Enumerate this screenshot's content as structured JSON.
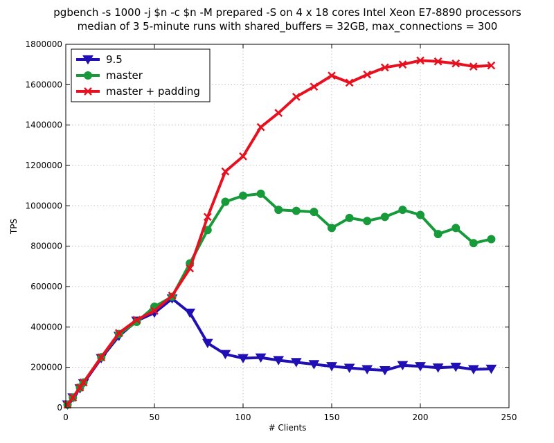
{
  "chart_data": {
    "type": "line",
    "title": "pgbench -s 1000 -j $n -c $n -M prepared -S on 4 x 18 cores Intel Xeon E7-8890 processors",
    "subtitle": "median of 3 5-minute runs with shared_buffers = 32GB, max_connections = 300",
    "xlabel": "# Clients",
    "ylabel": "TPS",
    "xlim": [
      0,
      250
    ],
    "ylim": [
      0,
      1800000
    ],
    "xticks": [
      0,
      50,
      100,
      150,
      200,
      250
    ],
    "yticks": [
      0,
      200000,
      400000,
      600000,
      800000,
      1000000,
      1200000,
      1400000,
      1600000,
      1800000
    ],
    "grid": true,
    "legend_position": "top-left",
    "x": [
      1,
      4,
      8,
      10,
      20,
      30,
      40,
      50,
      60,
      70,
      80,
      90,
      100,
      110,
      120,
      130,
      140,
      150,
      160,
      170,
      180,
      190,
      200,
      210,
      220,
      230,
      240
    ],
    "series": [
      {
        "name": "9.5",
        "color": "#1f0fb4",
        "marker": "triangle-down",
        "values": [
          15000,
          50000,
          95000,
          120000,
          245000,
          355000,
          430000,
          470000,
          540000,
          470000,
          320000,
          265000,
          245000,
          248000,
          235000,
          225000,
          215000,
          205000,
          197000,
          190000,
          185000,
          210000,
          205000,
          198000,
          202000,
          190000,
          192000
        ]
      },
      {
        "name": "master",
        "color": "#169a3a",
        "marker": "circle",
        "values": [
          15000,
          50000,
          100000,
          125000,
          250000,
          365000,
          425000,
          500000,
          550000,
          715000,
          880000,
          1020000,
          1050000,
          1060000,
          980000,
          975000,
          970000,
          890000,
          940000,
          925000,
          945000,
          980000,
          955000,
          860000,
          890000,
          815000,
          835000
        ]
      },
      {
        "name": "master + padding",
        "color": "#e8101f",
        "marker": "x",
        "values": [
          15000,
          50000,
          100000,
          125000,
          250000,
          370000,
          435000,
          480000,
          555000,
          690000,
          945000,
          1170000,
          1245000,
          1390000,
          1460000,
          1540000,
          1590000,
          1645000,
          1610000,
          1650000,
          1685000,
          1700000,
          1720000,
          1715000,
          1705000,
          1690000,
          1695000
        ]
      }
    ]
  }
}
